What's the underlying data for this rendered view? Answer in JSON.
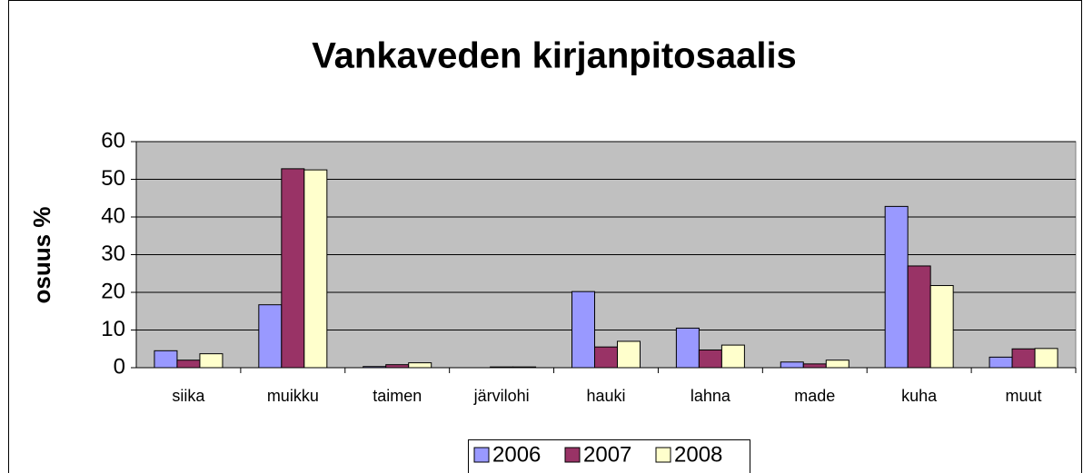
{
  "chart_data": {
    "type": "bar",
    "title": "Vankaveden kirjanpitosaalis",
    "y_label": "osuus %",
    "categories": [
      "siika",
      "muikku",
      "taimen",
      "järvilohi",
      "hauki",
      "lahna",
      "made",
      "kuha",
      "muut"
    ],
    "series": [
      {
        "name": "2006",
        "color": "#9999ff",
        "values": [
          4.5,
          16.7,
          0.3,
          0,
          20.2,
          10.5,
          1.5,
          42.8,
          2.8
        ]
      },
      {
        "name": "2007",
        "color": "#993366",
        "values": [
          2,
          52.8,
          0.8,
          0.2,
          5.5,
          4.7,
          1,
          27,
          5
        ]
      },
      {
        "name": "2008",
        "color": "#ffffcc",
        "values": [
          3.7,
          52.5,
          1.3,
          0.2,
          7,
          6,
          2,
          21.8,
          5.1
        ]
      }
    ],
    "ylim": [
      0,
      60
    ],
    "yticks": [
      0,
      10,
      20,
      30,
      40,
      50,
      60
    ],
    "grid": true,
    "legend": "bottom",
    "plot_background": "#c0c0c0"
  }
}
